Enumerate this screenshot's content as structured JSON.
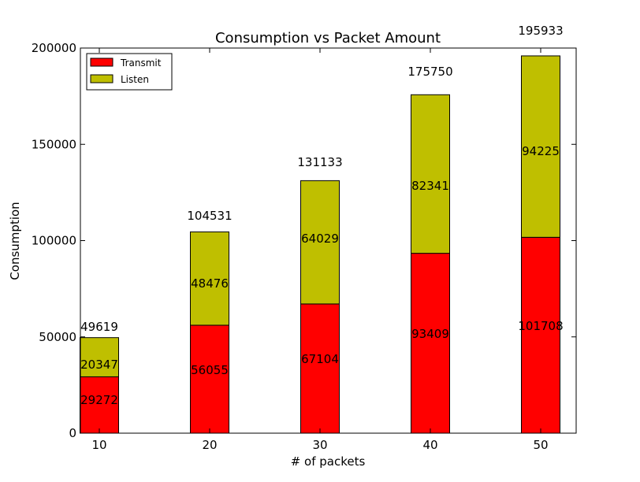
{
  "chart_data": {
    "type": "bar",
    "stacked": true,
    "title": "Consumption vs Packet Amount",
    "xlabel": "# of packets",
    "ylabel": "Consumption",
    "categories": [
      "10",
      "20",
      "30",
      "40",
      "50"
    ],
    "ylim": [
      0,
      200000
    ],
    "yticks": [
      0,
      50000,
      100000,
      150000,
      200000
    ],
    "ytick_labels": [
      "0",
      "50000",
      "100000",
      "150000",
      "200000"
    ],
    "series": [
      {
        "name": "Transmit",
        "color": "#ff0000",
        "values": [
          29272,
          56055,
          67104,
          93409,
          101708
        ]
      },
      {
        "name": "Listen",
        "color": "#bfbf00",
        "values": [
          20347,
          48476,
          64029,
          82341,
          94225
        ]
      }
    ],
    "totals": [
      49619,
      104531,
      131133,
      175750,
      195933
    ],
    "legend": {
      "position": "top-left"
    },
    "grid": false
  }
}
